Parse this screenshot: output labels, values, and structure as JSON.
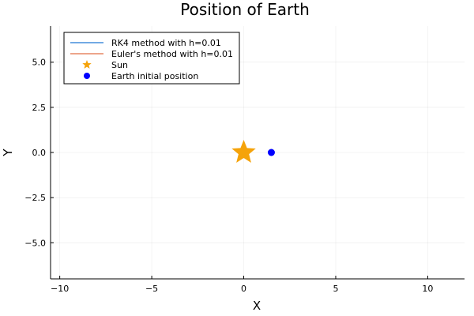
{
  "chart_data": {
    "type": "scatter",
    "title": "Position of Earth",
    "xlabel": "X",
    "ylabel": "Y",
    "xlim": [
      -10.5,
      12
    ],
    "ylim": [
      -7,
      7
    ],
    "xticks": [
      -10,
      -5,
      0,
      5,
      10
    ],
    "xtick_labels": [
      "−10",
      "−5",
      "0",
      "5",
      "10"
    ],
    "yticks": [
      -5,
      -2.5,
      0,
      2.5,
      5
    ],
    "ytick_labels": [
      "−5.0",
      "−2.5",
      "0.0",
      "2.5",
      "5.0"
    ],
    "grid": true,
    "legend_position": "top-left",
    "series": [
      {
        "name": "RK4 method with h=0.01",
        "kind": "line",
        "color": "#1f77d4",
        "points": []
      },
      {
        "name": "Euler's method with h=0.01",
        "kind": "line",
        "color": "#e26f46",
        "points": []
      },
      {
        "name": "Sun",
        "kind": "star",
        "color": "#f5a30a",
        "points": [
          [
            0,
            0
          ]
        ]
      },
      {
        "name": "Earth initial position",
        "kind": "circle",
        "color": "#0000ff",
        "points": [
          [
            1.5,
            0
          ]
        ]
      }
    ]
  }
}
